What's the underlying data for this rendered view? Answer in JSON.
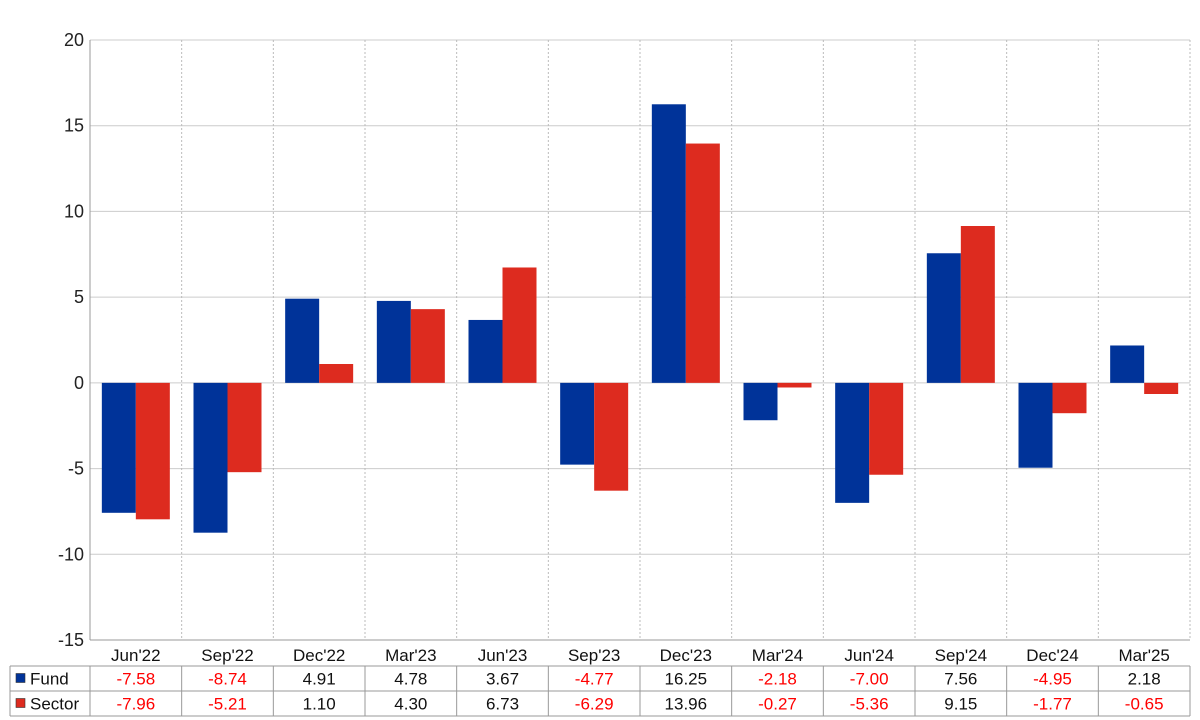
{
  "chart_data": {
    "type": "bar",
    "categories": [
      "Jun'22",
      "Sep'22",
      "Dec'22",
      "Mar'23",
      "Jun'23",
      "Sep'23",
      "Dec'23",
      "Mar'24",
      "Jun'24",
      "Sep'24",
      "Dec'24",
      "Mar'25"
    ],
    "series": [
      {
        "name": "Fund",
        "color": "#003399",
        "values": [
          -7.58,
          -8.74,
          4.91,
          4.78,
          3.67,
          -4.77,
          16.25,
          -2.18,
          -7.0,
          7.56,
          -4.95,
          2.18
        ],
        "labels": [
          "-7.58",
          "-8.74",
          "4.91",
          "4.78",
          "3.67",
          "-4.77",
          "16.25",
          "-2.18",
          "-7.00",
          "7.56",
          "-4.95",
          "2.18"
        ]
      },
      {
        "name": "Sector",
        "color": "#dd2b1f",
        "values": [
          -7.96,
          -5.21,
          1.1,
          4.3,
          6.73,
          -6.29,
          13.96,
          -0.27,
          -5.36,
          9.15,
          -1.77,
          -0.65
        ],
        "labels": [
          "-7.96",
          "-5.21",
          "1.10",
          "4.30",
          "6.73",
          "-6.29",
          "13.96",
          "-0.27",
          "-5.36",
          "9.15",
          "-1.77",
          "-0.65"
        ]
      }
    ],
    "y_ticks": [
      "20",
      "15",
      "10",
      "5",
      "0",
      "-5",
      "-10",
      "-15"
    ],
    "ylim": [
      -15,
      20
    ],
    "grid": true,
    "legend": "table-below",
    "negative_color": "#ff0000",
    "positive_color": "#111111"
  }
}
